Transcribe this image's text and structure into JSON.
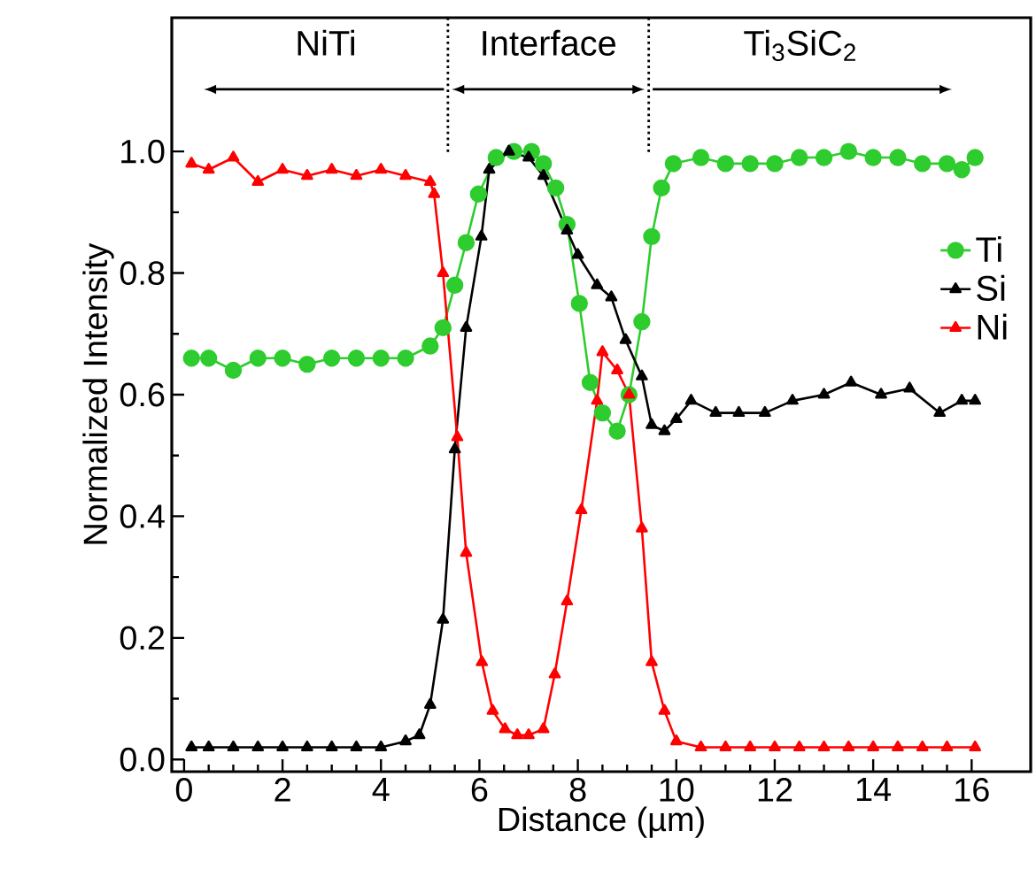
{
  "chart_data": {
    "type": "line",
    "xlabel": "Distance (µm)",
    "ylabel": "Normalized Intensity",
    "xlim": [
      -0.25,
      17.2
    ],
    "ylim": [
      -0.02,
      1.22
    ],
    "xticks": [
      0,
      2,
      4,
      6,
      8,
      10,
      12,
      14,
      16
    ],
    "yticks": [
      {
        "value": 0,
        "label": "0.0"
      },
      {
        "value": 0.2,
        "label": "0.2"
      },
      {
        "value": 0.4,
        "label": "0.4"
      },
      {
        "value": 0.6,
        "label": "0.6"
      },
      {
        "value": 0.8,
        "label": "0.8"
      },
      {
        "value": 1.0,
        "label": "1.0"
      }
    ],
    "legend": "top right",
    "series": [
      {
        "name": "Ti",
        "color": "#2ecc2e",
        "marker": "circle",
        "x": [
          0.15,
          0.5,
          1.0,
          1.5,
          2,
          2.5,
          3,
          3.5,
          4,
          4.5,
          5.0,
          5.26,
          5.5,
          5.73,
          5.98,
          6.34,
          6.7,
          7.06,
          7.3,
          7.55,
          7.78,
          8.03,
          8.25,
          8.5,
          8.8,
          9.04,
          9.3,
          9.5,
          9.7,
          9.94,
          10.5,
          11,
          11.5,
          12,
          12.5,
          13,
          13.5,
          14,
          14.5,
          15,
          15.5,
          15.8,
          16.07
        ],
        "values": [
          0.66,
          0.66,
          0.64,
          0.66,
          0.66,
          0.65,
          0.66,
          0.66,
          0.66,
          0.66,
          0.68,
          0.71,
          0.78,
          0.85,
          0.93,
          0.99,
          1.0,
          1.0,
          0.98,
          0.94,
          0.88,
          0.75,
          0.62,
          0.57,
          0.54,
          0.6,
          0.72,
          0.86,
          0.94,
          0.98,
          0.99,
          0.98,
          0.98,
          0.98,
          0.99,
          0.99,
          1.0,
          0.99,
          0.99,
          0.98,
          0.98,
          0.97,
          0.99
        ]
      },
      {
        "name": "Si",
        "color": "#000000",
        "marker": "triangle",
        "x": [
          0.15,
          0.5,
          1,
          1.5,
          2,
          2.5,
          3,
          3.5,
          4,
          4.5,
          4.78,
          5.0,
          5.26,
          5.5,
          5.73,
          6.04,
          6.2,
          6.6,
          7.0,
          7.3,
          7.78,
          8.0,
          8.39,
          8.68,
          8.97,
          9.3,
          9.5,
          9.76,
          10.0,
          10.3,
          10.8,
          11.27,
          11.8,
          12.36,
          13,
          13.55,
          14.16,
          14.74,
          15.35,
          15.8,
          16.07
        ],
        "values": [
          0.02,
          0.02,
          0.02,
          0.02,
          0.02,
          0.02,
          0.02,
          0.02,
          0.02,
          0.03,
          0.04,
          0.09,
          0.23,
          0.51,
          0.71,
          0.86,
          0.97,
          1.0,
          0.99,
          0.96,
          0.87,
          0.83,
          0.78,
          0.76,
          0.69,
          0.63,
          0.55,
          0.54,
          0.56,
          0.59,
          0.57,
          0.57,
          0.57,
          0.59,
          0.6,
          0.62,
          0.6,
          0.61,
          0.57,
          0.59,
          0.59
        ]
      },
      {
        "name": "Ni",
        "color": "#ff0000",
        "marker": "triangle",
        "x": [
          0.15,
          0.5,
          1.0,
          1.5,
          2.0,
          2.5,
          3.0,
          3.5,
          4.0,
          4.5,
          5.0,
          5.08,
          5.26,
          5.55,
          5.73,
          6.05,
          6.27,
          6.52,
          6.77,
          7.0,
          7.3,
          7.53,
          7.78,
          8.07,
          8.39,
          8.5,
          8.8,
          9.04,
          9.3,
          9.5,
          9.76,
          10.0,
          10.5,
          11,
          11.5,
          12,
          12.5,
          13,
          13.5,
          14,
          14.5,
          15,
          15.5,
          16.07
        ],
        "values": [
          0.98,
          0.97,
          0.99,
          0.95,
          0.97,
          0.96,
          0.97,
          0.96,
          0.97,
          0.96,
          0.95,
          0.93,
          0.8,
          0.53,
          0.34,
          0.16,
          0.08,
          0.05,
          0.04,
          0.04,
          0.05,
          0.14,
          0.26,
          0.41,
          0.59,
          0.67,
          0.64,
          0.6,
          0.38,
          0.16,
          0.08,
          0.03,
          0.02,
          0.02,
          0.02,
          0.02,
          0.02,
          0.02,
          0.02,
          0.02,
          0.02,
          0.02,
          0.02,
          0.02
        ]
      }
    ],
    "ref_lines": [
      {
        "axis": "x",
        "value": 5.36,
        "line_style": "dotted"
      },
      {
        "axis": "x",
        "value": 9.44,
        "line_style": "dotted"
      }
    ],
    "annotations": [
      "NiTi",
      "Interface",
      "Ti$_{3}$SiC$_{2}$"
    ]
  }
}
